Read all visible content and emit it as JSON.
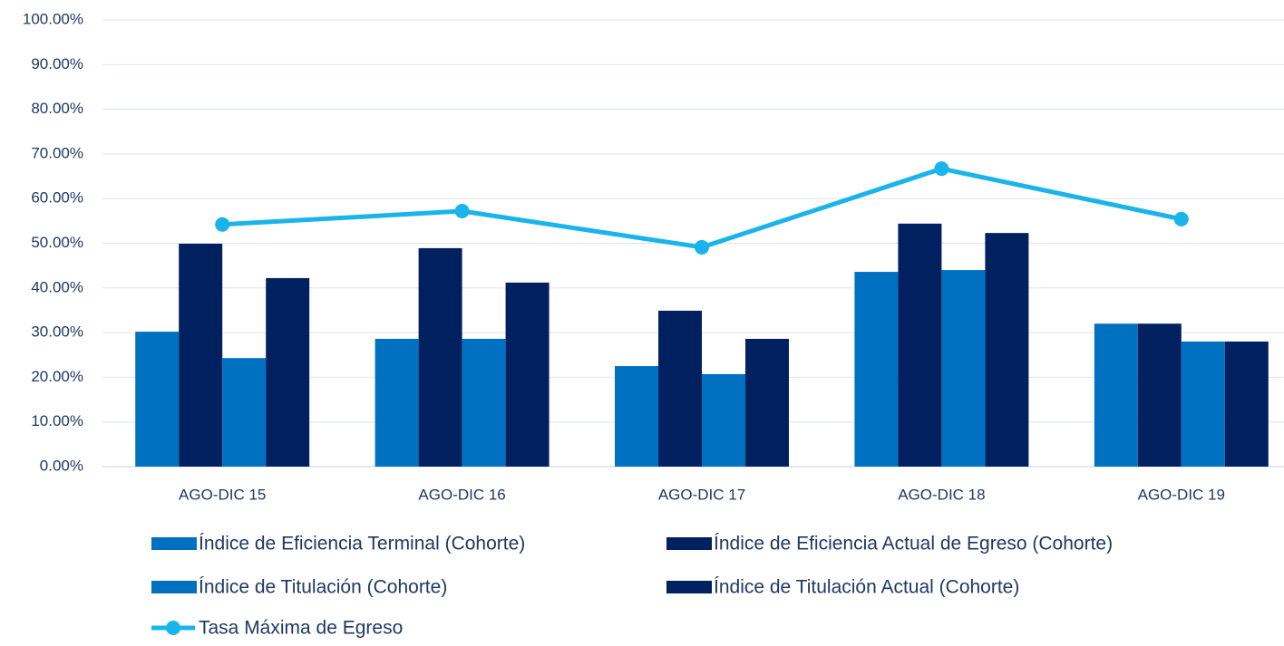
{
  "chart_data": {
    "type": "bar",
    "categories": [
      "AGO-DIC 15",
      "AGO-DIC 16",
      "AGO-DIC 17",
      "AGO-DIC 18",
      "AGO-DIC 19"
    ],
    "series": [
      {
        "name": "Índice de Eficiencia Terminal (Cohorte)",
        "color": "#0070c0",
        "values": [
          30.2,
          28.6,
          22.5,
          43.6,
          32.0
        ]
      },
      {
        "name": "Índice de Eficiencia Actual de Egreso (Cohorte)",
        "color": "#002060",
        "values": [
          49.9,
          48.9,
          34.9,
          54.4,
          32.0
        ]
      },
      {
        "name": "Índice de Titulación (Cohorte)",
        "color": "#0070c0",
        "values": [
          24.3,
          28.6,
          20.7,
          44.0,
          28.0
        ]
      },
      {
        "name": "Índice de Titulación Actual (Cohorte)",
        "color": "#002060",
        "values": [
          42.2,
          41.2,
          28.6,
          52.3,
          28.0
        ]
      },
      {
        "name": "Tasa Máxima de Egreso",
        "color": "#1ab4ea",
        "type": "line",
        "values": [
          54.2,
          57.2,
          49.1,
          66.7,
          55.4
        ]
      }
    ],
    "ylim": [
      0,
      100
    ],
    "yticks": [
      {
        "value": 0,
        "label": "0.00%"
      },
      {
        "value": 10,
        "label": "10.00%"
      },
      {
        "value": 20,
        "label": "20.00%"
      },
      {
        "value": 30,
        "label": "30.00%"
      },
      {
        "value": 40,
        "label": "40.00%"
      },
      {
        "value": 50,
        "label": "50.00%"
      },
      {
        "value": 60,
        "label": "60.00%"
      },
      {
        "value": 70,
        "label": "70.00%"
      },
      {
        "value": 80,
        "label": "80.00%"
      },
      {
        "value": 90,
        "label": "90.00%"
      },
      {
        "value": 100,
        "label": "100.00%"
      }
    ],
    "grid": true,
    "legend": "bottom"
  }
}
